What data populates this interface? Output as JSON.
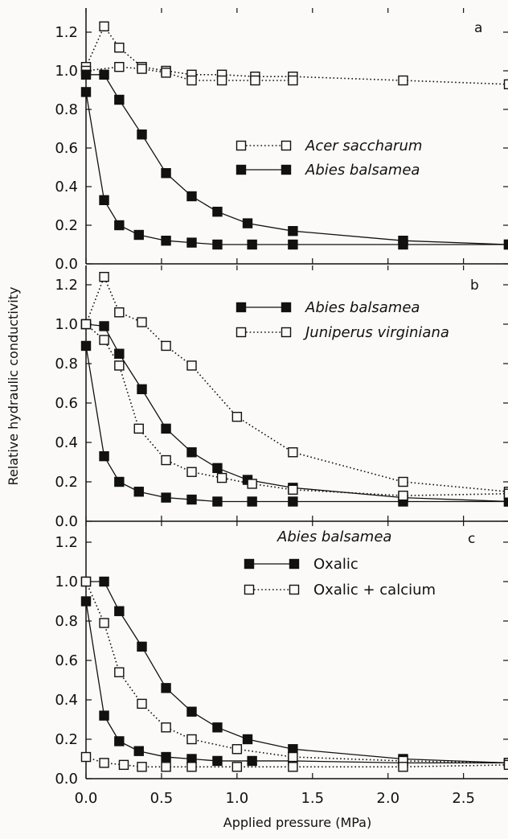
{
  "chart_data": [
    {
      "panel": "a",
      "type": "line",
      "title": "",
      "xlim": [
        0,
        2.8
      ],
      "ylim": [
        0,
        1.3
      ],
      "x_ticks": [
        "0.0",
        "0.5",
        "1.0",
        "1.5",
        "2.0",
        "2.5"
      ],
      "y_ticks": [
        "0.0",
        "0.2",
        "0.4",
        "0.6",
        "0.8",
        "1.0",
        "1.2"
      ],
      "series": [
        {
          "name": "Acer saccharum",
          "marker": "open-square",
          "line": "dotted",
          "branches": [
            {
              "x": [
                0.0,
                0.12,
                0.22,
                0.37,
                0.53,
                0.7,
                0.9,
                1.12,
                1.37,
                2.1,
                2.8
              ],
              "y": [
                1.02,
                1.23,
                1.12,
                1.02,
                1.0,
                0.98,
                0.98,
                0.97,
                0.97,
                0.95,
                0.93
              ]
            },
            {
              "x": [
                0.0,
                0.22,
                0.37,
                0.53,
                0.7,
                0.9,
                1.12,
                1.37
              ],
              "y": [
                1.0,
                1.02,
                1.01,
                0.99,
                0.95,
                0.95,
                0.95,
                0.95
              ]
            }
          ]
        },
        {
          "name": "Abies balsamea",
          "marker": "filled-square",
          "line": "solid",
          "branches": [
            {
              "x": [
                0.0,
                0.12,
                0.22,
                0.37,
                0.53,
                0.7,
                0.87,
                1.07,
                1.37,
                2.1,
                2.8
              ],
              "y": [
                0.98,
                0.98,
                0.85,
                0.67,
                0.47,
                0.35,
                0.27,
                0.21,
                0.17,
                0.12,
                0.1
              ]
            },
            {
              "x": [
                0.0,
                0.12,
                0.22,
                0.35,
                0.53,
                0.7,
                0.87,
                1.1,
                1.37,
                2.1,
                2.8
              ],
              "y": [
                0.89,
                0.33,
                0.2,
                0.15,
                0.12,
                0.11,
                0.1,
                0.1,
                0.1,
                0.1,
                0.1
              ]
            }
          ]
        }
      ]
    },
    {
      "panel": "b",
      "type": "line",
      "title": "",
      "xlim": [
        0,
        2.8
      ],
      "ylim": [
        0,
        1.3
      ],
      "x_ticks": [
        "0.0",
        "0.5",
        "1.0",
        "1.5",
        "2.0",
        "2.5"
      ],
      "y_ticks": [
        "0.0",
        "0.2",
        "0.4",
        "0.6",
        "0.8",
        "1.0",
        "1.2"
      ],
      "series": [
        {
          "name": "Abies balsamea",
          "marker": "filled-square",
          "line": "solid",
          "branches": [
            {
              "x": [
                0.0,
                0.12,
                0.22,
                0.37,
                0.53,
                0.7,
                0.87,
                1.07,
                1.37,
                2.1,
                2.8
              ],
              "y": [
                1.0,
                0.99,
                0.85,
                0.67,
                0.47,
                0.35,
                0.27,
                0.21,
                0.17,
                0.12,
                0.1
              ]
            },
            {
              "x": [
                0.0,
                0.12,
                0.22,
                0.35,
                0.53,
                0.7,
                0.87,
                1.1,
                1.37,
                2.1,
                2.8
              ],
              "y": [
                0.89,
                0.33,
                0.2,
                0.15,
                0.12,
                0.11,
                0.1,
                0.1,
                0.1,
                0.1,
                0.1
              ]
            }
          ]
        },
        {
          "name": "Juniperus virginiana",
          "marker": "open-square",
          "line": "dotted",
          "branches": [
            {
              "x": [
                0.0,
                0.12,
                0.22,
                0.37,
                0.53,
                0.7,
                1.0,
                1.37,
                2.1,
                2.8
              ],
              "y": [
                1.0,
                1.24,
                1.06,
                1.01,
                0.89,
                0.79,
                0.53,
                0.35,
                0.2,
                0.15
              ]
            },
            {
              "x": [
                0.0,
                0.12,
                0.22,
                0.35,
                0.53,
                0.7,
                0.9,
                1.1,
                1.37,
                2.1,
                2.8
              ],
              "y": [
                1.0,
                0.92,
                0.79,
                0.47,
                0.31,
                0.25,
                0.22,
                0.19,
                0.16,
                0.13,
                0.14
              ]
            }
          ]
        }
      ]
    },
    {
      "panel": "c",
      "type": "line",
      "title": "Abies balsamea",
      "xlim": [
        0,
        2.8
      ],
      "ylim": [
        0,
        1.3
      ],
      "x_ticks": [
        "0.0",
        "0.5",
        "1.0",
        "1.5",
        "2.0",
        "2.5"
      ],
      "y_ticks": [
        "0.0",
        "0.2",
        "0.4",
        "0.6",
        "0.8",
        "1.0",
        "1.2"
      ],
      "series": [
        {
          "name": "Oxalic",
          "marker": "filled-square",
          "line": "solid",
          "branches": [
            {
              "x": [
                0.0,
                0.12,
                0.22,
                0.37,
                0.53,
                0.7,
                0.87,
                1.07,
                1.37,
                2.1,
                2.8
              ],
              "y": [
                1.0,
                1.0,
                0.85,
                0.67,
                0.46,
                0.34,
                0.26,
                0.2,
                0.15,
                0.1,
                0.08
              ]
            },
            {
              "x": [
                0.0,
                0.12,
                0.22,
                0.35,
                0.53,
                0.7,
                0.87,
                1.1,
                1.37,
                2.1,
                2.8
              ],
              "y": [
                0.9,
                0.32,
                0.19,
                0.14,
                0.11,
                0.1,
                0.09,
                0.09,
                0.09,
                0.08,
                0.08
              ]
            }
          ]
        },
        {
          "name": "Oxalic + calcium",
          "marker": "open-square",
          "line": "dotted",
          "branches": [
            {
              "x": [
                0.0,
                0.12,
                0.22,
                0.37,
                0.53,
                0.7,
                1.0,
                1.37,
                2.1,
                2.8
              ],
              "y": [
                1.0,
                0.79,
                0.54,
                0.38,
                0.26,
                0.2,
                0.15,
                0.11,
                0.09,
                0.08
              ]
            },
            {
              "x": [
                0.0,
                0.12,
                0.25,
                0.37,
                0.53,
                0.7,
                1.0,
                1.37,
                2.1,
                2.8
              ],
              "y": [
                0.11,
                0.08,
                0.07,
                0.06,
                0.06,
                0.06,
                0.06,
                0.06,
                0.06,
                0.07
              ]
            }
          ]
        }
      ]
    }
  ],
  "panel_letters": [
    "a",
    "b",
    "c"
  ],
  "axis_labels": {
    "ylabel": "Relative hydraulic conductivity",
    "xlabel": "Applied pressure (MPa)"
  },
  "colors": {
    "ink": "#111111",
    "background": "#fbfaf8"
  }
}
